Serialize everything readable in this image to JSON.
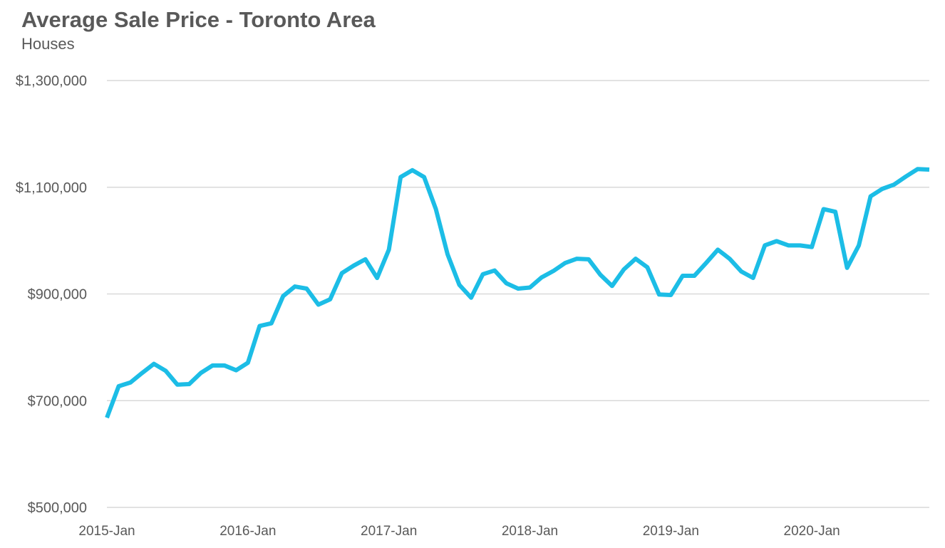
{
  "chart_data": {
    "type": "line",
    "title": "Average Sale Price - Toronto Area",
    "subtitle": "Houses",
    "xlabel": "",
    "ylabel": "",
    "ylim": [
      500000,
      1300000
    ],
    "y_ticks": [
      500000,
      700000,
      900000,
      1100000,
      1300000
    ],
    "y_tick_labels": [
      "$500,000",
      "$700,000",
      "$900,000",
      "$1,100,000",
      "$1,300,000"
    ],
    "x_tick_labels": [
      "2015-Jan",
      "2016-Jan",
      "2017-Jan",
      "2018-Jan",
      "2019-Jan",
      "2020-Jan"
    ],
    "x_tick_index": [
      0,
      12,
      24,
      36,
      48,
      60
    ],
    "grid": "horizontal",
    "legend": "none",
    "line_color": "#1CBDE6",
    "grid_color": "#D9D9D9",
    "series": [
      {
        "values": [
          668000,
          727000,
          734000,
          752000,
          769000,
          756000,
          730000,
          731000,
          752000,
          766000,
          766000,
          757000,
          771000,
          840000,
          845000,
          896000,
          914000,
          910000,
          880000,
          890000,
          939000,
          953000,
          965000,
          930000,
          983000,
          1119000,
          1132000,
          1119000,
          1059000,
          974000,
          917000,
          893000,
          937000,
          944000,
          920000,
          910000,
          912000,
          931000,
          943000,
          958000,
          966000,
          965000,
          936000,
          915000,
          946000,
          966000,
          950000,
          899000,
          898000,
          934000,
          934000,
          958000,
          983000,
          966000,
          942000,
          930000,
          991000,
          999000,
          991000,
          991000,
          988000,
          1059000,
          1054000,
          949000,
          991000,
          1083000,
          1097000,
          1105000,
          1120000,
          1134000,
          1133000
        ]
      }
    ]
  }
}
